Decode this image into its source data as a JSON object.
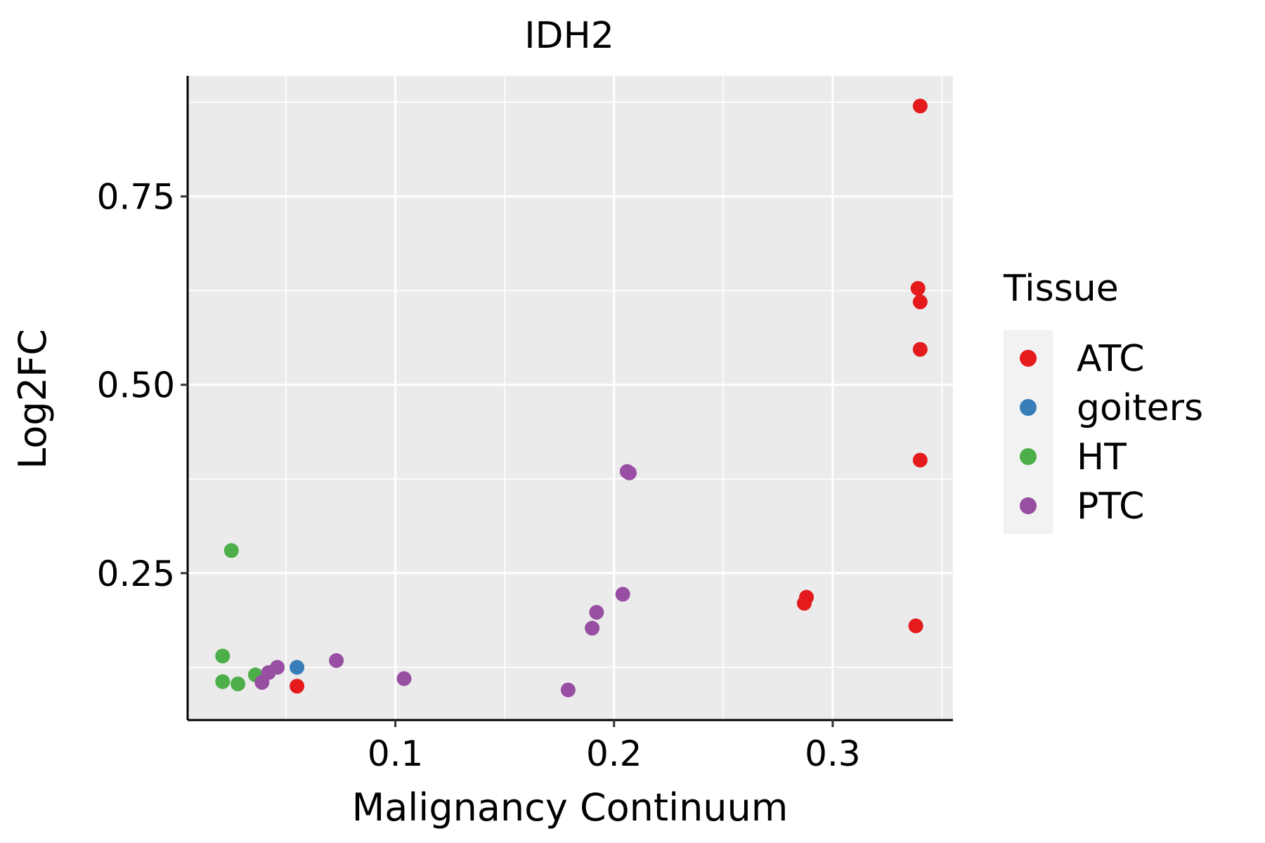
{
  "chart_data": {
    "type": "scatter",
    "title": "IDH2",
    "xlabel": "Malignancy Continuum",
    "ylabel": "Log2FC",
    "xlim": [
      0.005,
      0.355
    ],
    "ylim": [
      0.055,
      0.91
    ],
    "x_ticks": [
      0.1,
      0.2,
      0.3
    ],
    "x_tick_labels": [
      "0.1",
      "0.2",
      "0.3"
    ],
    "x_minor": [
      0.05,
      0.15,
      0.25,
      0.35
    ],
    "y_ticks": [
      0.25,
      0.5,
      0.75
    ],
    "y_tick_labels": [
      "0.25",
      "0.50",
      "0.75"
    ],
    "y_minor": [
      0.125,
      0.375,
      0.625,
      0.875
    ],
    "grid": true,
    "legend": {
      "title": "Tissue",
      "position": "right",
      "entries": [
        {
          "name": "ATC",
          "color": "#E41A1C"
        },
        {
          "name": "goiters",
          "color": "#377EB8"
        },
        {
          "name": "HT",
          "color": "#4DAF4A"
        },
        {
          "name": "PTC",
          "color": "#984EA3"
        }
      ]
    },
    "series": [
      {
        "name": "ATC",
        "color": "#E41A1C",
        "points": [
          {
            "x": 0.34,
            "y": 0.87
          },
          {
            "x": 0.339,
            "y": 0.628
          },
          {
            "x": 0.34,
            "y": 0.61
          },
          {
            "x": 0.34,
            "y": 0.547
          },
          {
            "x": 0.34,
            "y": 0.4
          },
          {
            "x": 0.288,
            "y": 0.218
          },
          {
            "x": 0.287,
            "y": 0.21
          },
          {
            "x": 0.338,
            "y": 0.18
          },
          {
            "x": 0.055,
            "y": 0.1
          }
        ]
      },
      {
        "name": "goiters",
        "color": "#377EB8",
        "points": [
          {
            "x": 0.055,
            "y": 0.125
          }
        ]
      },
      {
        "name": "HT",
        "color": "#4DAF4A",
        "points": [
          {
            "x": 0.025,
            "y": 0.28
          },
          {
            "x": 0.021,
            "y": 0.14
          },
          {
            "x": 0.021,
            "y": 0.106
          },
          {
            "x": 0.028,
            "y": 0.103
          },
          {
            "x": 0.036,
            "y": 0.115
          }
        ]
      },
      {
        "name": "PTC",
        "color": "#984EA3",
        "points": [
          {
            "x": 0.206,
            "y": 0.385
          },
          {
            "x": 0.207,
            "y": 0.383
          },
          {
            "x": 0.204,
            "y": 0.222
          },
          {
            "x": 0.192,
            "y": 0.198
          },
          {
            "x": 0.19,
            "y": 0.177
          },
          {
            "x": 0.073,
            "y": 0.134
          },
          {
            "x": 0.104,
            "y": 0.11
          },
          {
            "x": 0.179,
            "y": 0.095
          },
          {
            "x": 0.046,
            "y": 0.125
          },
          {
            "x": 0.042,
            "y": 0.118
          },
          {
            "x": 0.039,
            "y": 0.105
          }
        ]
      }
    ]
  }
}
